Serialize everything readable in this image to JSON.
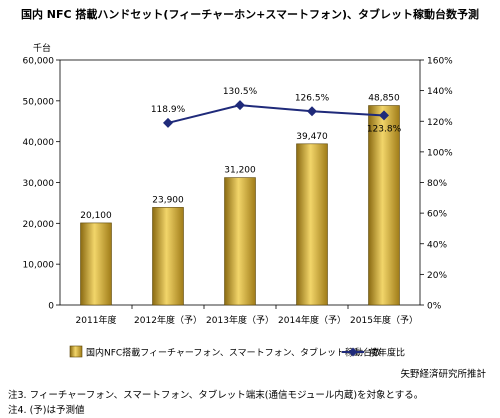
{
  "chart_data": {
    "type": "bar",
    "title": "国内 NFC 搭載ハンドセット(フィーチャーホン+スマートフォン)、タブレット稼動台数予測",
    "categories": [
      "2011年度",
      "2012年度（予）",
      "2013年度（予）",
      "2014年度（予）",
      "2015年度（予）"
    ],
    "y_unit": "千台",
    "ylim": [
      0,
      60000
    ],
    "yticks": [
      "0",
      "10,000",
      "20,000",
      "30,000",
      "40,000",
      "50,000",
      "60,000"
    ],
    "y2lim": [
      0,
      160
    ],
    "y2ticks": [
      "0%",
      "20%",
      "40%",
      "60%",
      "80%",
      "100%",
      "120%",
      "140%",
      "160%"
    ],
    "series": [
      {
        "name": "国内NFC搭載フィーチャーフォン、スマートフォン、タブレット稼動台数",
        "kind": "bar",
        "axis": "left",
        "color": "#c9a22f",
        "values": [
          20100,
          23900,
          31200,
          39470,
          48850
        ],
        "labels": [
          "20,100",
          "23,900",
          "31,200",
          "39,470",
          "48,850"
        ]
      },
      {
        "name": "前年度比",
        "kind": "line",
        "axis": "right",
        "color": "#1f2a7a",
        "values": [
          null,
          118.9,
          130.5,
          126.5,
          123.8
        ],
        "labels": [
          "",
          "118.9%",
          "130.5%",
          "126.5%",
          "123.8%"
        ]
      }
    ],
    "legend_position": "bottom",
    "grid": false
  },
  "notes": {
    "source": "矢野経済研究所推計",
    "note1": "注3.  フィーチャーフォン、スマートフォン、タブレット端末(通信モジュール内蔵)を対象とする。",
    "note2": "注4.  (予)は予測値"
  }
}
